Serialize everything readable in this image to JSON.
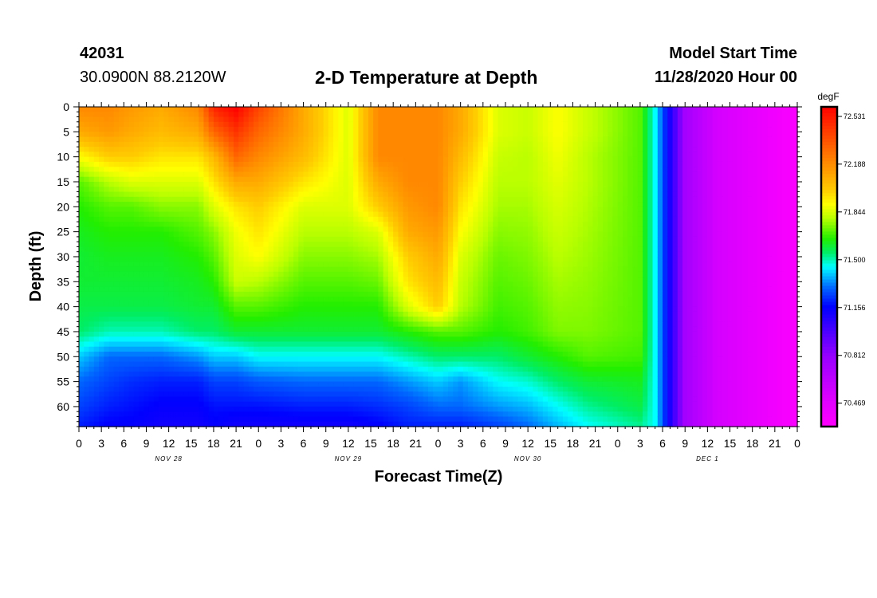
{
  "header": {
    "station_id": "42031",
    "coordinates": "30.0900N 88.2120W",
    "title": "2-D Temperature at Depth",
    "model_start_label": "Model Start Time",
    "model_start_date": "11/28/2020 Hour 00"
  },
  "chart_data": {
    "type": "heatmap",
    "title": "2-D Temperature at Depth",
    "xlabel": "Forecast Time(Z)",
    "ylabel": "Depth (ft)",
    "x_unit": "hours since 11/28/2020 00Z",
    "xlim": [
      0,
      96
    ],
    "ylim": [
      0,
      64
    ],
    "y_ticks": [
      0,
      5,
      10,
      15,
      20,
      25,
      30,
      35,
      40,
      45,
      50,
      55,
      60
    ],
    "x_tick_labels": [
      "0",
      "3",
      "6",
      "9",
      "12",
      "15",
      "18",
      "21",
      "0",
      "3",
      "6",
      "9",
      "12",
      "15",
      "18",
      "21",
      "0",
      "3",
      "6",
      "9",
      "12",
      "15",
      "18",
      "21",
      "0",
      "3",
      "6",
      "9",
      "12",
      "15",
      "18",
      "21",
      "0"
    ],
    "day_labels": [
      "NOV 28",
      "NOV 29",
      "NOV 30",
      "DEC 1"
    ],
    "colorbar": {
      "unit": "degF",
      "min": 70.3,
      "max": 72.6,
      "tick_values": [
        72.531,
        72.188,
        71.844,
        71.5,
        71.156,
        70.812,
        70.469
      ],
      "tick_labels": [
        "72.531",
        "72.188",
        "71.844",
        "71.500",
        "71.156",
        "70.812",
        "70.469"
      ]
    },
    "colorscale": [
      {
        "value": 70.3,
        "color": "#ff00ff"
      },
      {
        "value": 70.5,
        "color": "#dd00ff"
      },
      {
        "value": 70.8,
        "color": "#9900ff"
      },
      {
        "value": 71.0,
        "color": "#4400ff"
      },
      {
        "value": 71.16,
        "color": "#0000ff"
      },
      {
        "value": 71.3,
        "color": "#0066ff"
      },
      {
        "value": 71.45,
        "color": "#00ffff"
      },
      {
        "value": 71.55,
        "color": "#00ee66"
      },
      {
        "value": 71.65,
        "color": "#22ee00"
      },
      {
        "value": 71.8,
        "color": "#bbff00"
      },
      {
        "value": 71.9,
        "color": "#ffff00"
      },
      {
        "value": 72.0,
        "color": "#ffcc00"
      },
      {
        "value": 72.2,
        "color": "#ff8800"
      },
      {
        "value": 72.35,
        "color": "#ff5500"
      },
      {
        "value": 72.6,
        "color": "#ff0000"
      }
    ],
    "depths": [
      0,
      5,
      10,
      15,
      20,
      25,
      30,
      35,
      40,
      45,
      50,
      55,
      60,
      64
    ],
    "profiles": [
      {
        "hour": 0,
        "temps": [
          72.2,
          72.1,
          71.9,
          71.7,
          71.65,
          71.62,
          71.6,
          71.6,
          71.58,
          71.55,
          71.4,
          71.3,
          71.25,
          71.2
        ]
      },
      {
        "hour": 4,
        "temps": [
          72.2,
          72.15,
          72.0,
          71.8,
          71.7,
          71.65,
          71.62,
          71.6,
          71.58,
          71.5,
          71.3,
          71.25,
          71.2,
          71.15
        ]
      },
      {
        "hour": 7,
        "temps": [
          72.15,
          72.1,
          72.0,
          71.85,
          71.7,
          71.65,
          71.62,
          71.6,
          71.58,
          71.5,
          71.3,
          71.22,
          71.18,
          71.15
        ]
      },
      {
        "hour": 11,
        "temps": [
          72.1,
          72.05,
          71.95,
          71.85,
          71.75,
          71.65,
          71.62,
          71.6,
          71.58,
          71.5,
          71.3,
          71.2,
          71.15,
          71.12
        ]
      },
      {
        "hour": 16,
        "temps": [
          72.2,
          72.1,
          71.95,
          71.85,
          71.75,
          71.7,
          71.65,
          71.62,
          71.6,
          71.55,
          71.35,
          71.2,
          71.15,
          71.12
        ]
      },
      {
        "hour": 18,
        "temps": [
          72.5,
          72.3,
          72.05,
          71.95,
          71.85,
          71.75,
          71.7,
          71.65,
          71.6,
          71.55,
          71.4,
          71.25,
          71.18,
          71.15
        ]
      },
      {
        "hour": 21,
        "temps": [
          72.6,
          72.45,
          72.3,
          72.1,
          71.95,
          71.88,
          71.85,
          71.82,
          71.7,
          71.6,
          71.4,
          71.25,
          71.18,
          71.12
        ]
      },
      {
        "hour": 24,
        "temps": [
          72.4,
          72.3,
          72.2,
          72.1,
          72.0,
          71.95,
          71.9,
          71.8,
          71.7,
          71.6,
          71.45,
          71.28,
          71.18,
          71.12
        ]
      },
      {
        "hour": 30,
        "temps": [
          72.1,
          72.1,
          72.05,
          71.95,
          71.85,
          71.8,
          71.75,
          71.7,
          71.65,
          71.6,
          71.45,
          71.3,
          71.2,
          71.12
        ]
      },
      {
        "hour": 36,
        "temps": [
          71.85,
          71.85,
          71.85,
          71.85,
          71.85,
          71.8,
          71.75,
          71.7,
          71.65,
          71.6,
          71.45,
          71.3,
          71.2,
          71.12
        ]
      },
      {
        "hour": 40,
        "temps": [
          72.2,
          72.2,
          72.2,
          72.1,
          72.0,
          71.85,
          71.78,
          71.72,
          71.65,
          71.6,
          71.45,
          71.3,
          71.22,
          71.15
        ]
      },
      {
        "hour": 44,
        "temps": [
          72.2,
          72.2,
          72.2,
          72.2,
          72.15,
          72.1,
          72.0,
          71.95,
          71.85,
          71.65,
          71.5,
          71.35,
          71.25,
          71.2
        ]
      },
      {
        "hour": 48,
        "temps": [
          72.2,
          72.2,
          72.2,
          72.2,
          72.2,
          72.15,
          72.1,
          72.05,
          72.0,
          71.7,
          71.55,
          71.4,
          71.3,
          71.2
        ]
      },
      {
        "hour": 51,
        "temps": [
          72.1,
          72.1,
          72.05,
          72.0,
          71.95,
          71.9,
          71.85,
          71.82,
          71.8,
          71.7,
          71.55,
          71.35,
          71.3,
          71.2
        ]
      },
      {
        "hour": 56,
        "temps": [
          71.85,
          71.85,
          71.82,
          71.8,
          71.78,
          71.75,
          71.72,
          71.7,
          71.68,
          71.65,
          71.55,
          71.45,
          71.35,
          71.25
        ]
      },
      {
        "hour": 60,
        "temps": [
          71.82,
          71.82,
          71.8,
          71.8,
          71.78,
          71.76,
          71.74,
          71.72,
          71.7,
          71.68,
          71.6,
          71.48,
          71.38,
          71.3
        ]
      },
      {
        "hour": 64,
        "temps": [
          71.9,
          71.9,
          71.88,
          71.86,
          71.84,
          71.82,
          71.8,
          71.78,
          71.76,
          71.74,
          71.65,
          71.55,
          71.45,
          71.38
        ]
      },
      {
        "hour": 68,
        "temps": [
          71.82,
          71.82,
          71.8,
          71.8,
          71.79,
          71.78,
          71.77,
          71.76,
          71.75,
          71.74,
          71.7,
          71.6,
          71.52,
          71.45
        ]
      },
      {
        "hour": 75,
        "temps": [
          71.7,
          71.7,
          71.7,
          71.7,
          71.7,
          71.7,
          71.7,
          71.7,
          71.7,
          71.7,
          71.68,
          71.62,
          71.58,
          71.52
        ]
      },
      {
        "hour": 77,
        "temps": [
          71.45,
          71.45,
          71.45,
          71.45,
          71.45,
          71.45,
          71.45,
          71.45,
          71.45,
          71.45,
          71.45,
          71.45,
          71.45,
          71.45
        ]
      },
      {
        "hour": 79,
        "temps": [
          71.1,
          71.1,
          71.1,
          71.1,
          71.1,
          71.1,
          71.1,
          71.1,
          71.1,
          71.1,
          71.1,
          71.1,
          71.1,
          71.1
        ]
      },
      {
        "hour": 81,
        "temps": [
          70.75,
          70.75,
          70.75,
          70.75,
          70.75,
          70.75,
          70.75,
          70.75,
          70.75,
          70.75,
          70.75,
          70.75,
          70.75,
          70.75
        ]
      },
      {
        "hour": 85,
        "temps": [
          70.55,
          70.55,
          70.55,
          70.55,
          70.55,
          70.55,
          70.55,
          70.55,
          70.55,
          70.55,
          70.55,
          70.55,
          70.55,
          70.55
        ]
      },
      {
        "hour": 96,
        "temps": [
          70.32,
          70.32,
          70.32,
          70.32,
          70.32,
          70.32,
          70.32,
          70.32,
          70.32,
          70.32,
          70.32,
          70.32,
          70.32,
          70.32
        ]
      }
    ]
  }
}
